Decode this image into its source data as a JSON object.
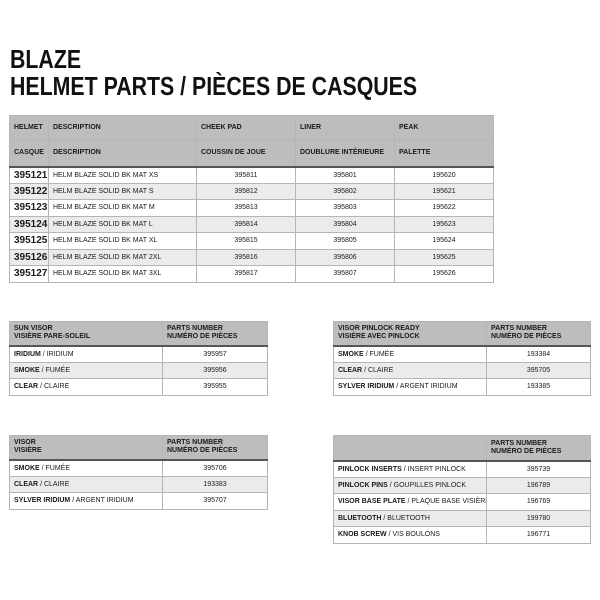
{
  "title": {
    "line1": "BLAZE",
    "line2": "HELMET PARTS / PIÈCES DE CASQUES"
  },
  "main_table": {
    "headers_en": [
      "HELMET",
      "DESCRIPTION",
      "CHEEK PAD",
      "LINER",
      "PEAK"
    ],
    "headers_fr": [
      "CASQUE",
      "DESCRIPTION",
      "COUSSIN DE JOUE",
      "DOUBLURE INTÉRIEURE",
      "PALETTE"
    ],
    "rows": [
      [
        "395121",
        "HELM BLAZE SOLID BK MAT XS",
        "395811",
        "395801",
        "195620"
      ],
      [
        "395122",
        "HELM BLAZE SOLID BK MAT S",
        "395812",
        "395802",
        "195621"
      ],
      [
        "395123",
        "HELM BLAZE SOLID BK MAT M",
        "395813",
        "395803",
        "195622"
      ],
      [
        "395124",
        "HELM BLAZE SOLID BK MAT L",
        "395814",
        "395804",
        "195623"
      ],
      [
        "395125",
        "HELM BLAZE SOLID BK MAT XL",
        "395815",
        "395805",
        "195624"
      ],
      [
        "395126",
        "HELM BLAZE SOLID BK MAT 2XL",
        "395816",
        "395806",
        "195625"
      ],
      [
        "395127",
        "HELM BLAZE SOLID BK MAT 3XL",
        "395817",
        "395807",
        "195626"
      ]
    ]
  },
  "sun_visor": {
    "h1": "SUN VISOR",
    "h2": "VISIÈRE PARE-SOLEIL",
    "p1": "PARTS NUMBER",
    "p2": "NUMÉRO DE PIÈCES",
    "rows": [
      {
        "en": "IRIDIUM",
        "fr": "IRIDIUM",
        "num": "395957"
      },
      {
        "en": "SMOKE",
        "fr": "FUMÉE",
        "num": "395956"
      },
      {
        "en": "CLEAR",
        "fr": "CLAIRE",
        "num": "395955"
      }
    ]
  },
  "pinlock_visor": {
    "h1": "VISOR PINLOCK READY",
    "h2": "VISIÈRE AVEC PINLOCK",
    "p1": "PARTS NUMBER",
    "p2": "NUMÉRO DE PIÈCES",
    "rows": [
      {
        "en": "SMOKE",
        "fr": "FUMÉE",
        "num": "193384"
      },
      {
        "en": "CLEAR",
        "fr": "CLAIRE",
        "num": "395705"
      },
      {
        "en": "SYLVER IRIDIUM",
        "fr": "ARGENT IRIDIUM",
        "num": "193385"
      }
    ]
  },
  "visor": {
    "h1": "VISOR",
    "h2": "VISIÈRE",
    "p1": "PARTS NUMBER",
    "p2": "NUMÉRO DE PIÈCES",
    "rows": [
      {
        "en": "SMOKE",
        "fr": "FUMÉE",
        "num": "395706"
      },
      {
        "en": "CLEAR",
        "fr": "CLAIRE",
        "num": "193383"
      },
      {
        "en": "SYLVER IRIDIUM",
        "fr": "ARGENT IRIDIUM",
        "num": "395707"
      }
    ]
  },
  "accessories": {
    "h1": "",
    "h2": "",
    "p1": "PARTS NUMBER",
    "p2": "NUMÉRO DE PIÈCES",
    "rows": [
      {
        "en": "PINLOCK INSERTS",
        "fr": "INSERT PINLOCK",
        "num": "395739"
      },
      {
        "en": "PINLOCK PINS",
        "fr": "GOUPILLES PINLOCK",
        "num": "196789"
      },
      {
        "en": "VISOR BASE PLATE",
        "fr": "PLAQUE BASE VISIÈRE",
        "num": "196769"
      },
      {
        "en": "BLUETOOTH",
        "fr": "BLUETOOTH",
        "num": "199780"
      },
      {
        "en": "KNOB SCREW",
        "fr": "VIS BOULONS",
        "num": "196771"
      }
    ]
  }
}
